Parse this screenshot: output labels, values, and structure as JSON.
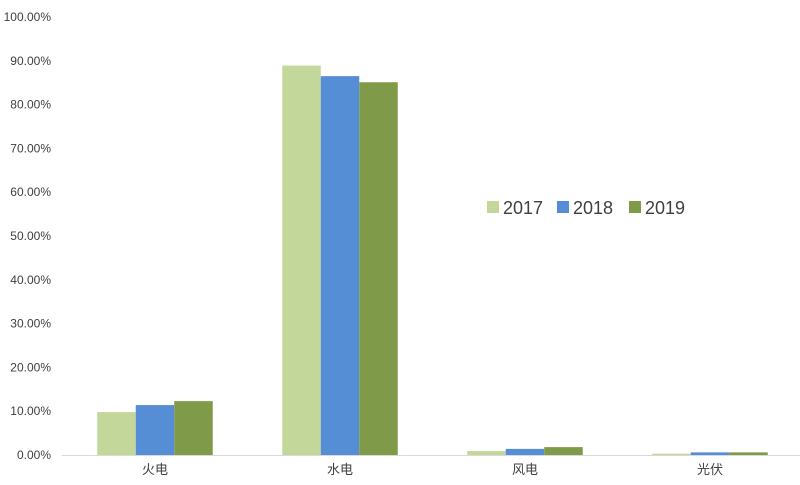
{
  "chart_data": {
    "type": "bar",
    "title": "",
    "xlabel": "",
    "ylabel": "",
    "categories": [
      "火电",
      "水电",
      "风电",
      "光伏"
    ],
    "series": [
      {
        "name": "2017",
        "color": "#c4d79b",
        "values": [
          9.8,
          88.9,
          0.9,
          0.3
        ]
      },
      {
        "name": "2018",
        "color": "#558ed5",
        "values": [
          11.4,
          86.5,
          1.4,
          0.6
        ]
      },
      {
        "name": "2019",
        "color": "#7f9a48",
        "values": [
          12.3,
          85.1,
          1.8,
          0.6
        ]
      }
    ],
    "ylim": [
      0,
      100
    ],
    "yticks": [
      "0.00%",
      "10.00%",
      "20.00%",
      "30.00%",
      "40.00%",
      "50.00%",
      "60.00%",
      "70.00%",
      "80.00%",
      "90.00%",
      "100.00%"
    ],
    "grid": false,
    "legend": "right-center"
  }
}
